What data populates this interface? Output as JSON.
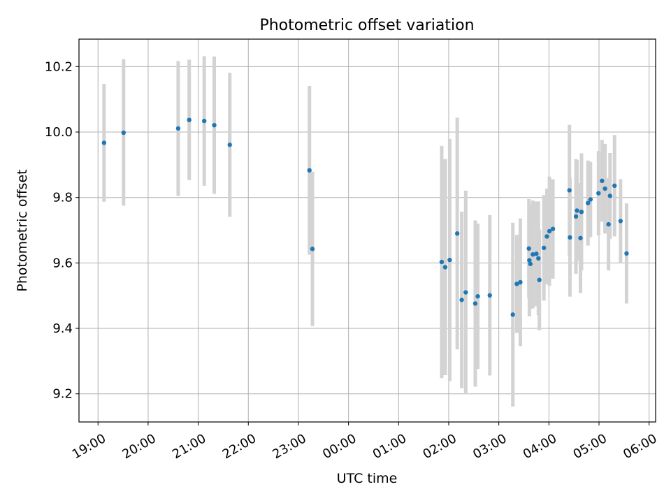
{
  "chart_data": {
    "type": "scatter",
    "title": "Photometric offset variation",
    "xlabel": "UTC time",
    "ylabel": "Photometric offset",
    "x_unit": "hours relative to 00:00 UTC",
    "xlim": [
      -5.38,
      6.13
    ],
    "ylim": [
      9.114,
      10.284
    ],
    "grid": true,
    "x_ticks": [
      -5,
      -4,
      -3,
      -2,
      -1,
      0,
      1,
      2,
      3,
      4,
      5,
      6
    ],
    "x_tick_labels": [
      "19:00",
      "20:00",
      "21:00",
      "22:00",
      "23:00",
      "00:00",
      "01:00",
      "02:00",
      "03:00",
      "04:00",
      "05:00",
      "06:00"
    ],
    "y_ticks": [
      9.2,
      9.4,
      9.6,
      9.8,
      10.0,
      10.2
    ],
    "y_tick_labels": [
      "9.2",
      "9.4",
      "9.6",
      "9.8",
      "10.0",
      "10.2"
    ],
    "colors": {
      "point": "#1f77b4",
      "errorbar": "#d3d3d3",
      "grid": "#b0b0b0"
    },
    "points": [
      {
        "x": -4.88,
        "y": 9.967,
        "lo": 9.787,
        "hi": 10.147
      },
      {
        "x": -4.49,
        "y": 9.998,
        "lo": 9.775,
        "hi": 10.223
      },
      {
        "x": -3.4,
        "y": 10.011,
        "lo": 9.805,
        "hi": 10.217
      },
      {
        "x": -3.18,
        "y": 10.037,
        "lo": 9.853,
        "hi": 10.221
      },
      {
        "x": -2.88,
        "y": 10.034,
        "lo": 9.836,
        "hi": 10.232
      },
      {
        "x": -2.68,
        "y": 10.021,
        "lo": 9.811,
        "hi": 10.231
      },
      {
        "x": -2.37,
        "y": 9.961,
        "lo": 9.741,
        "hi": 10.181
      },
      {
        "x": -0.78,
        "y": 9.883,
        "lo": 9.625,
        "hi": 10.141
      },
      {
        "x": -0.72,
        "y": 9.643,
        "lo": 9.407,
        "hi": 9.879
      },
      {
        "x": 1.86,
        "y": 9.603,
        "lo": 9.248,
        "hi": 9.958
      },
      {
        "x": 1.93,
        "y": 9.587,
        "lo": 9.257,
        "hi": 9.917
      },
      {
        "x": 2.02,
        "y": 9.609,
        "lo": 9.239,
        "hi": 9.979
      },
      {
        "x": 2.17,
        "y": 9.69,
        "lo": 9.336,
        "hi": 10.044
      },
      {
        "x": 2.26,
        "y": 9.487,
        "lo": 9.217,
        "hi": 9.757
      },
      {
        "x": 2.34,
        "y": 9.51,
        "lo": 9.199,
        "hi": 9.821
      },
      {
        "x": 2.53,
        "y": 9.476,
        "lo": 9.222,
        "hi": 9.73
      },
      {
        "x": 2.58,
        "y": 9.498,
        "lo": 9.276,
        "hi": 9.72
      },
      {
        "x": 2.82,
        "y": 9.501,
        "lo": 9.256,
        "hi": 9.746
      },
      {
        "x": 3.28,
        "y": 9.442,
        "lo": 9.161,
        "hi": 9.723
      },
      {
        "x": 3.36,
        "y": 9.536,
        "lo": 9.386,
        "hi": 9.686
      },
      {
        "x": 3.43,
        "y": 9.541,
        "lo": 9.346,
        "hi": 9.736
      },
      {
        "x": 3.6,
        "y": 9.644,
        "lo": 9.493,
        "hi": 9.795
      },
      {
        "x": 3.61,
        "y": 9.608,
        "lo": 9.437,
        "hi": 9.779
      },
      {
        "x": 3.63,
        "y": 9.597,
        "lo": 9.459,
        "hi": 9.735
      },
      {
        "x": 3.68,
        "y": 9.626,
        "lo": 9.461,
        "hi": 9.791
      },
      {
        "x": 3.75,
        "y": 9.628,
        "lo": 9.468,
        "hi": 9.788
      },
      {
        "x": 3.79,
        "y": 9.614,
        "lo": 9.44,
        "hi": 9.788
      },
      {
        "x": 3.81,
        "y": 9.548,
        "lo": 9.394,
        "hi": 9.702
      },
      {
        "x": 3.9,
        "y": 9.646,
        "lo": 9.485,
        "hi": 9.807
      },
      {
        "x": 3.96,
        "y": 9.681,
        "lo": 9.535,
        "hi": 9.827
      },
      {
        "x": 4.01,
        "y": 9.697,
        "lo": 9.53,
        "hi": 9.864
      },
      {
        "x": 4.08,
        "y": 9.704,
        "lo": 9.552,
        "hi": 9.856
      },
      {
        "x": 4.41,
        "y": 9.822,
        "lo": 9.622,
        "hi": 10.022
      },
      {
        "x": 4.42,
        "y": 9.678,
        "lo": 9.497,
        "hi": 9.859
      },
      {
        "x": 4.54,
        "y": 9.742,
        "lo": 9.567,
        "hi": 9.917
      },
      {
        "x": 4.56,
        "y": 9.76,
        "lo": 9.606,
        "hi": 9.914
      },
      {
        "x": 4.63,
        "y": 9.676,
        "lo": 9.508,
        "hi": 9.844
      },
      {
        "x": 4.65,
        "y": 9.756,
        "lo": 9.577,
        "hi": 9.935
      },
      {
        "x": 4.78,
        "y": 9.783,
        "lo": 9.653,
        "hi": 9.913
      },
      {
        "x": 4.83,
        "y": 9.794,
        "lo": 9.679,
        "hi": 9.909
      },
      {
        "x": 4.99,
        "y": 9.813,
        "lo": 9.684,
        "hi": 9.942
      },
      {
        "x": 5.06,
        "y": 9.851,
        "lo": 9.726,
        "hi": 9.976
      },
      {
        "x": 5.12,
        "y": 9.827,
        "lo": 9.69,
        "hi": 9.964
      },
      {
        "x": 5.19,
        "y": 9.718,
        "lo": 9.577,
        "hi": 9.859
      },
      {
        "x": 5.22,
        "y": 9.805,
        "lo": 9.674,
        "hi": 9.936
      },
      {
        "x": 5.31,
        "y": 9.836,
        "lo": 9.681,
        "hi": 9.991
      },
      {
        "x": 5.43,
        "y": 9.728,
        "lo": 9.6,
        "hi": 9.856
      },
      {
        "x": 5.55,
        "y": 9.629,
        "lo": 9.476,
        "hi": 9.782
      }
    ]
  }
}
